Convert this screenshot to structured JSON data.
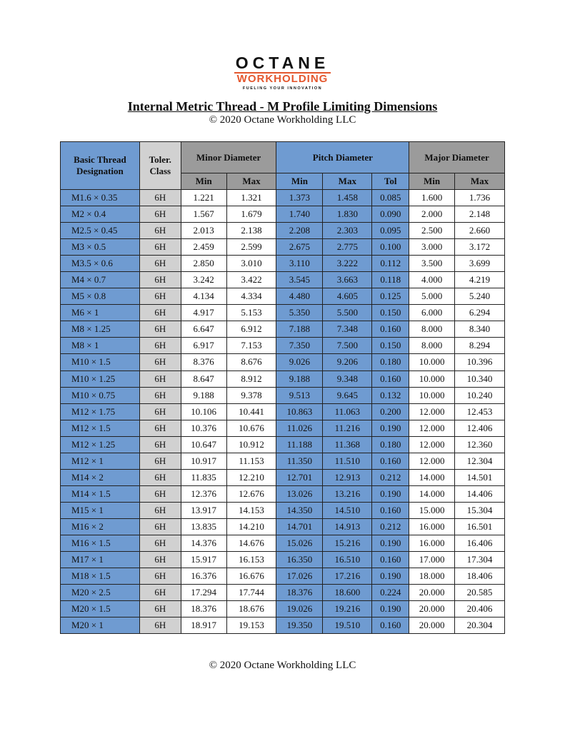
{
  "logo": {
    "name": "OCTANE",
    "sub": "WORKHOLDING",
    "tagline": "FUELING YOUR INNOVATION"
  },
  "title": "Internal Metric Thread - M Profile Limiting Dimensions",
  "subtitle": "© 2020 Octane Workholding LLC",
  "footer": "© 2020 Octane Workholding LLC",
  "colors": {
    "blue": "#6f9bd1",
    "header_gray": "#9b9b9b",
    "class_gray": "#d1d1d1",
    "brand_orange": "#e4572e"
  },
  "table": {
    "headers": {
      "designation": "Basic Thread Designation",
      "class": "Toler. Class",
      "minor": "Minor Diameter",
      "pitch": "Pitch Diameter",
      "major": "Major Diameter",
      "min": "Min",
      "max": "Max",
      "tol": "Tol"
    },
    "rows": [
      [
        "M1.6 × 0.35",
        "6H",
        "1.221",
        "1.321",
        "1.373",
        "1.458",
        "0.085",
        "1.600",
        "1.736"
      ],
      [
        "M2 × 0.4",
        "6H",
        "1.567",
        "1.679",
        "1.740",
        "1.830",
        "0.090",
        "2.000",
        "2.148"
      ],
      [
        "M2.5 × 0.45",
        "6H",
        "2.013",
        "2.138",
        "2.208",
        "2.303",
        "0.095",
        "2.500",
        "2.660"
      ],
      [
        "M3 × 0.5",
        "6H",
        "2.459",
        "2.599",
        "2.675",
        "2.775",
        "0.100",
        "3.000",
        "3.172"
      ],
      [
        "M3.5 × 0.6",
        "6H",
        "2.850",
        "3.010",
        "3.110",
        "3.222",
        "0.112",
        "3.500",
        "3.699"
      ],
      [
        "M4 × 0.7",
        "6H",
        "3.242",
        "3.422",
        "3.545",
        "3.663",
        "0.118",
        "4.000",
        "4.219"
      ],
      [
        "M5 × 0.8",
        "6H",
        "4.134",
        "4.334",
        "4.480",
        "4.605",
        "0.125",
        "5.000",
        "5.240"
      ],
      [
        "M6 × 1",
        "6H",
        "4.917",
        "5.153",
        "5.350",
        "5.500",
        "0.150",
        "6.000",
        "6.294"
      ],
      [
        "M8 × 1.25",
        "6H",
        "6.647",
        "6.912",
        "7.188",
        "7.348",
        "0.160",
        "8.000",
        "8.340"
      ],
      [
        "M8 × 1",
        "6H",
        "6.917",
        "7.153",
        "7.350",
        "7.500",
        "0.150",
        "8.000",
        "8.294"
      ],
      [
        "M10 × 1.5",
        "6H",
        "8.376",
        "8.676",
        "9.026",
        "9.206",
        "0.180",
        "10.000",
        "10.396"
      ],
      [
        "M10 × 1.25",
        "6H",
        "8.647",
        "8.912",
        "9.188",
        "9.348",
        "0.160",
        "10.000",
        "10.340"
      ],
      [
        "M10 × 0.75",
        "6H",
        "9.188",
        "9.378",
        "9.513",
        "9.645",
        "0.132",
        "10.000",
        "10.240"
      ],
      [
        "M12 × 1.75",
        "6H",
        "10.106",
        "10.441",
        "10.863",
        "11.063",
        "0.200",
        "12.000",
        "12.453"
      ],
      [
        "M12 × 1.5",
        "6H",
        "10.376",
        "10.676",
        "11.026",
        "11.216",
        "0.190",
        "12.000",
        "12.406"
      ],
      [
        "M12 × 1.25",
        "6H",
        "10.647",
        "10.912",
        "11.188",
        "11.368",
        "0.180",
        "12.000",
        "12.360"
      ],
      [
        "M12 × 1",
        "6H",
        "10.917",
        "11.153",
        "11.350",
        "11.510",
        "0.160",
        "12.000",
        "12.304"
      ],
      [
        "M14 × 2",
        "6H",
        "11.835",
        "12.210",
        "12.701",
        "12.913",
        "0.212",
        "14.000",
        "14.501"
      ],
      [
        "M14 × 1.5",
        "6H",
        "12.376",
        "12.676",
        "13.026",
        "13.216",
        "0.190",
        "14.000",
        "14.406"
      ],
      [
        "M15 × 1",
        "6H",
        "13.917",
        "14.153",
        "14.350",
        "14.510",
        "0.160",
        "15.000",
        "15.304"
      ],
      [
        "M16 × 2",
        "6H",
        "13.835",
        "14.210",
        "14.701",
        "14.913",
        "0.212",
        "16.000",
        "16.501"
      ],
      [
        "M16 × 1.5",
        "6H",
        "14.376",
        "14.676",
        "15.026",
        "15.216",
        "0.190",
        "16.000",
        "16.406"
      ],
      [
        "M17 × 1",
        "6H",
        "15.917",
        "16.153",
        "16.350",
        "16.510",
        "0.160",
        "17.000",
        "17.304"
      ],
      [
        "M18 × 1.5",
        "6H",
        "16.376",
        "16.676",
        "17.026",
        "17.216",
        "0.190",
        "18.000",
        "18.406"
      ],
      [
        "M20 × 2.5",
        "6H",
        "17.294",
        "17.744",
        "18.376",
        "18.600",
        "0.224",
        "20.000",
        "20.585"
      ],
      [
        "M20 × 1.5",
        "6H",
        "18.376",
        "18.676",
        "19.026",
        "19.216",
        "0.190",
        "20.000",
        "20.406"
      ],
      [
        "M20 × 1",
        "6H",
        "18.917",
        "19.153",
        "19.350",
        "19.510",
        "0.160",
        "20.000",
        "20.304"
      ]
    ]
  }
}
